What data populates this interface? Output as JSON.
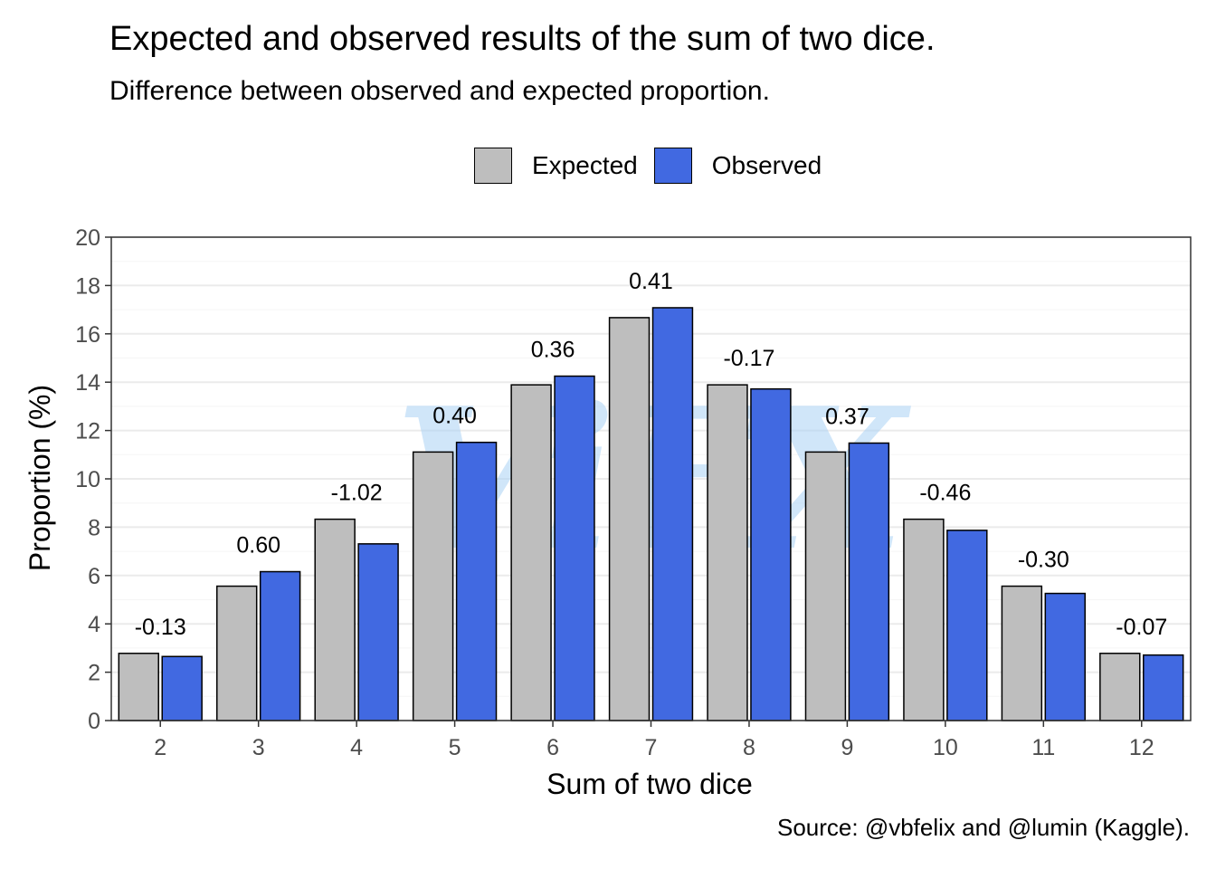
{
  "chart_data": {
    "type": "bar",
    "title": "Expected and observed results of the sum of two dice.",
    "subtitle": "Difference between observed and expected proportion.",
    "caption": "Source: @vbfelix and @lumin (Kaggle).",
    "xlabel": "Sum of two dice",
    "ylabel": "Proportion (%)",
    "categories": [
      "2",
      "3",
      "4",
      "5",
      "6",
      "7",
      "8",
      "9",
      "10",
      "11",
      "12"
    ],
    "series": [
      {
        "name": "Expected",
        "color": "#bebebe",
        "values": [
          2.78,
          5.56,
          8.33,
          11.11,
          13.89,
          16.67,
          13.89,
          11.11,
          8.33,
          5.56,
          2.78
        ]
      },
      {
        "name": "Observed",
        "color": "#4169e1",
        "values": [
          2.65,
          6.16,
          7.31,
          11.51,
          14.25,
          17.08,
          13.72,
          11.48,
          7.87,
          5.26,
          2.71
        ]
      }
    ],
    "differences": [
      "-0.13",
      "0.60",
      "-1.02",
      "0.40",
      "0.36",
      "0.41",
      "-0.17",
      "0.37",
      "-0.46",
      "-0.30",
      "-0.07"
    ],
    "ylim": [
      0,
      20
    ],
    "yticks": [
      0,
      2,
      4,
      6,
      8,
      10,
      12,
      14,
      16,
      18,
      20
    ],
    "grid": "horizontal",
    "legend_position": "top",
    "watermark": "ViFX"
  }
}
